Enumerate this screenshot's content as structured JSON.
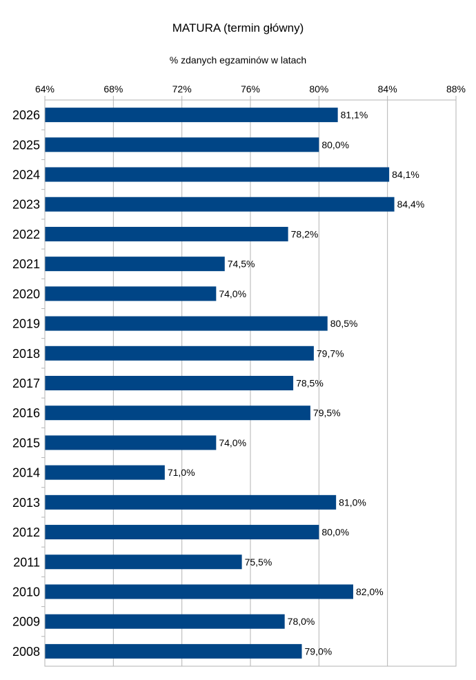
{
  "chart_data": {
    "type": "bar",
    "orientation": "horizontal",
    "title": "MATURA (termin główny)",
    "subtitle": "% zdanych egzaminów w latach",
    "xlabel": "",
    "ylabel": "",
    "xlim": [
      64,
      88
    ],
    "x_ticks": [
      64,
      68,
      72,
      76,
      80,
      84,
      88
    ],
    "x_tick_labels": [
      "64%",
      "68%",
      "72%",
      "76%",
      "80%",
      "84%",
      "88%"
    ],
    "x_axis_position": "top",
    "grid": true,
    "legend": "none",
    "bar_color": "#004586",
    "categories": [
      "2026",
      "2025",
      "2024",
      "2023",
      "2022",
      "2021",
      "2020",
      "2019",
      "2018",
      "2017",
      "2016",
      "2015",
      "2014",
      "2013",
      "2012",
      "2011",
      "2010",
      "2009",
      "2008"
    ],
    "values": [
      81.1,
      80.0,
      84.1,
      84.4,
      78.2,
      74.5,
      74.0,
      80.5,
      79.7,
      78.5,
      79.5,
      74.0,
      71.0,
      81.0,
      80.0,
      75.5,
      82.0,
      78.0,
      79.0
    ],
    "data_labels": [
      "81,1%",
      "80,0%",
      "84,1%",
      "84,4%",
      "78,2%",
      "74,5%",
      "74,0%",
      "80,5%",
      "79,7%",
      "78,5%",
      "79,5%",
      "74,0%",
      "71,0%",
      "81,0%",
      "80,0%",
      "75,5%",
      "82,0%",
      "78,0%",
      "79,0%"
    ]
  }
}
